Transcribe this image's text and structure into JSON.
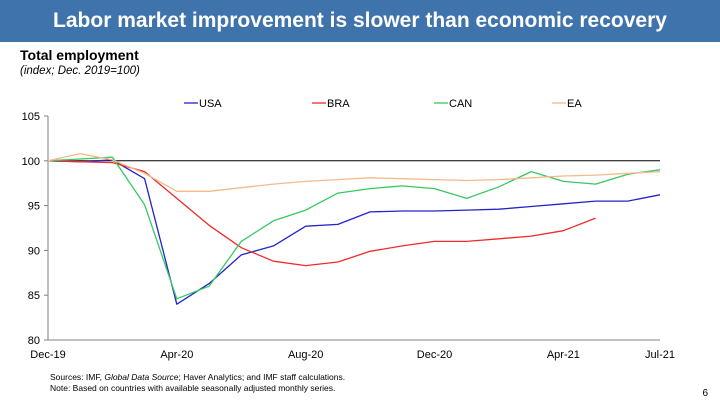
{
  "slide": {
    "title": "Labor market improvement is slower than economic recovery",
    "page_number": "6",
    "source_prefix": "Sources: IMF, ",
    "source_italic": "Global Data Source",
    "source_suffix": "; Haver Analytics; and IMF staff calculations.",
    "note": "Note: Based on countries with available seasonally adjusted monthly series.",
    "colors": {
      "banner": "#3f73ac",
      "USA": "#2424c8",
      "BRA": "#ee2b2b",
      "CAN": "#36c864",
      "EA": "#f6b98a"
    }
  },
  "chart_data": {
    "type": "line",
    "title": "Total employment",
    "subtitle": "(index; Dec. 2019=100)",
    "x": [
      "Dec-19",
      "Jan-20",
      "Feb-20",
      "Mar-20",
      "Apr-20",
      "May-20",
      "Jun-20",
      "Jul-20",
      "Aug-20",
      "Sep-20",
      "Oct-20",
      "Nov-20",
      "Dec-20",
      "Jan-21",
      "Feb-21",
      "Mar-21",
      "Apr-21",
      "May-21",
      "Jun-21",
      "Jul-21"
    ],
    "x_tick_labels": [
      "Dec-19",
      "Apr-20",
      "Aug-20",
      "Dec-20",
      "Apr-21",
      "Jul-21"
    ],
    "ylim": [
      80,
      105
    ],
    "y_ticks": [
      80,
      85,
      90,
      95,
      100,
      105
    ],
    "reference_line": 100,
    "legend_position": "top",
    "series": [
      {
        "name": "USA",
        "values": [
          100,
          99.9,
          100.1,
          98.0,
          84.0,
          86.3,
          89.5,
          90.5,
          92.7,
          92.9,
          94.3,
          94.4,
          94.4,
          94.5,
          94.6,
          94.9,
          95.2,
          95.5,
          95.5,
          96.2
        ]
      },
      {
        "name": "BRA",
        "values": [
          100,
          99.9,
          99.8,
          98.8,
          95.8,
          92.8,
          90.3,
          88.8,
          88.3,
          88.7,
          89.9,
          90.5,
          91.0,
          91.0,
          91.3,
          91.6,
          92.2,
          93.6,
          null,
          null
        ]
      },
      {
        "name": "CAN",
        "values": [
          100,
          100.2,
          100.4,
          95.1,
          84.6,
          86.0,
          91.0,
          93.3,
          94.5,
          96.4,
          96.9,
          97.2,
          96.9,
          95.8,
          97.1,
          98.8,
          97.7,
          97.4,
          98.5,
          99.0
        ]
      },
      {
        "name": "EA",
        "values": [
          100,
          100.8,
          100.1,
          98.6,
          96.6,
          96.6,
          97.0,
          97.4,
          97.7,
          97.9,
          98.1,
          98.0,
          97.9,
          97.8,
          97.9,
          98.1,
          98.3,
          98.4,
          98.6,
          98.8
        ]
      }
    ]
  }
}
